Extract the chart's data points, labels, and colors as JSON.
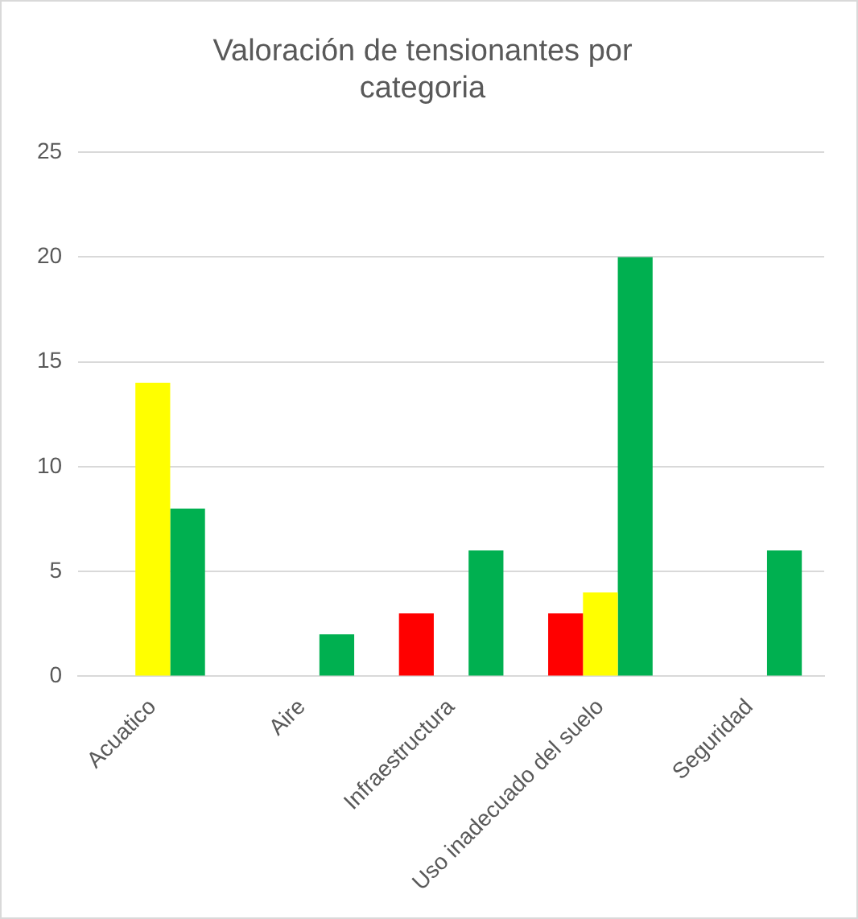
{
  "chart_data": {
    "type": "bar",
    "title": "Valoración de tensionantes por categoria",
    "categories": [
      "Acuatico",
      "Aire",
      "Infraestructura",
      "Uso inadecuado del suelo",
      "Seguridad"
    ],
    "series": [
      {
        "color": "#ff0000",
        "values": [
          null,
          null,
          3,
          3,
          null
        ]
      },
      {
        "color": "#ffff00",
        "values": [
          14,
          null,
          null,
          4,
          null
        ]
      },
      {
        "color": "#00b050",
        "values": [
          8,
          2,
          6,
          20,
          6
        ]
      }
    ],
    "ylim": [
      0,
      25
    ],
    "yticks": [
      0,
      5,
      10,
      15,
      20,
      25
    ],
    "grid": "y",
    "legend": false
  }
}
